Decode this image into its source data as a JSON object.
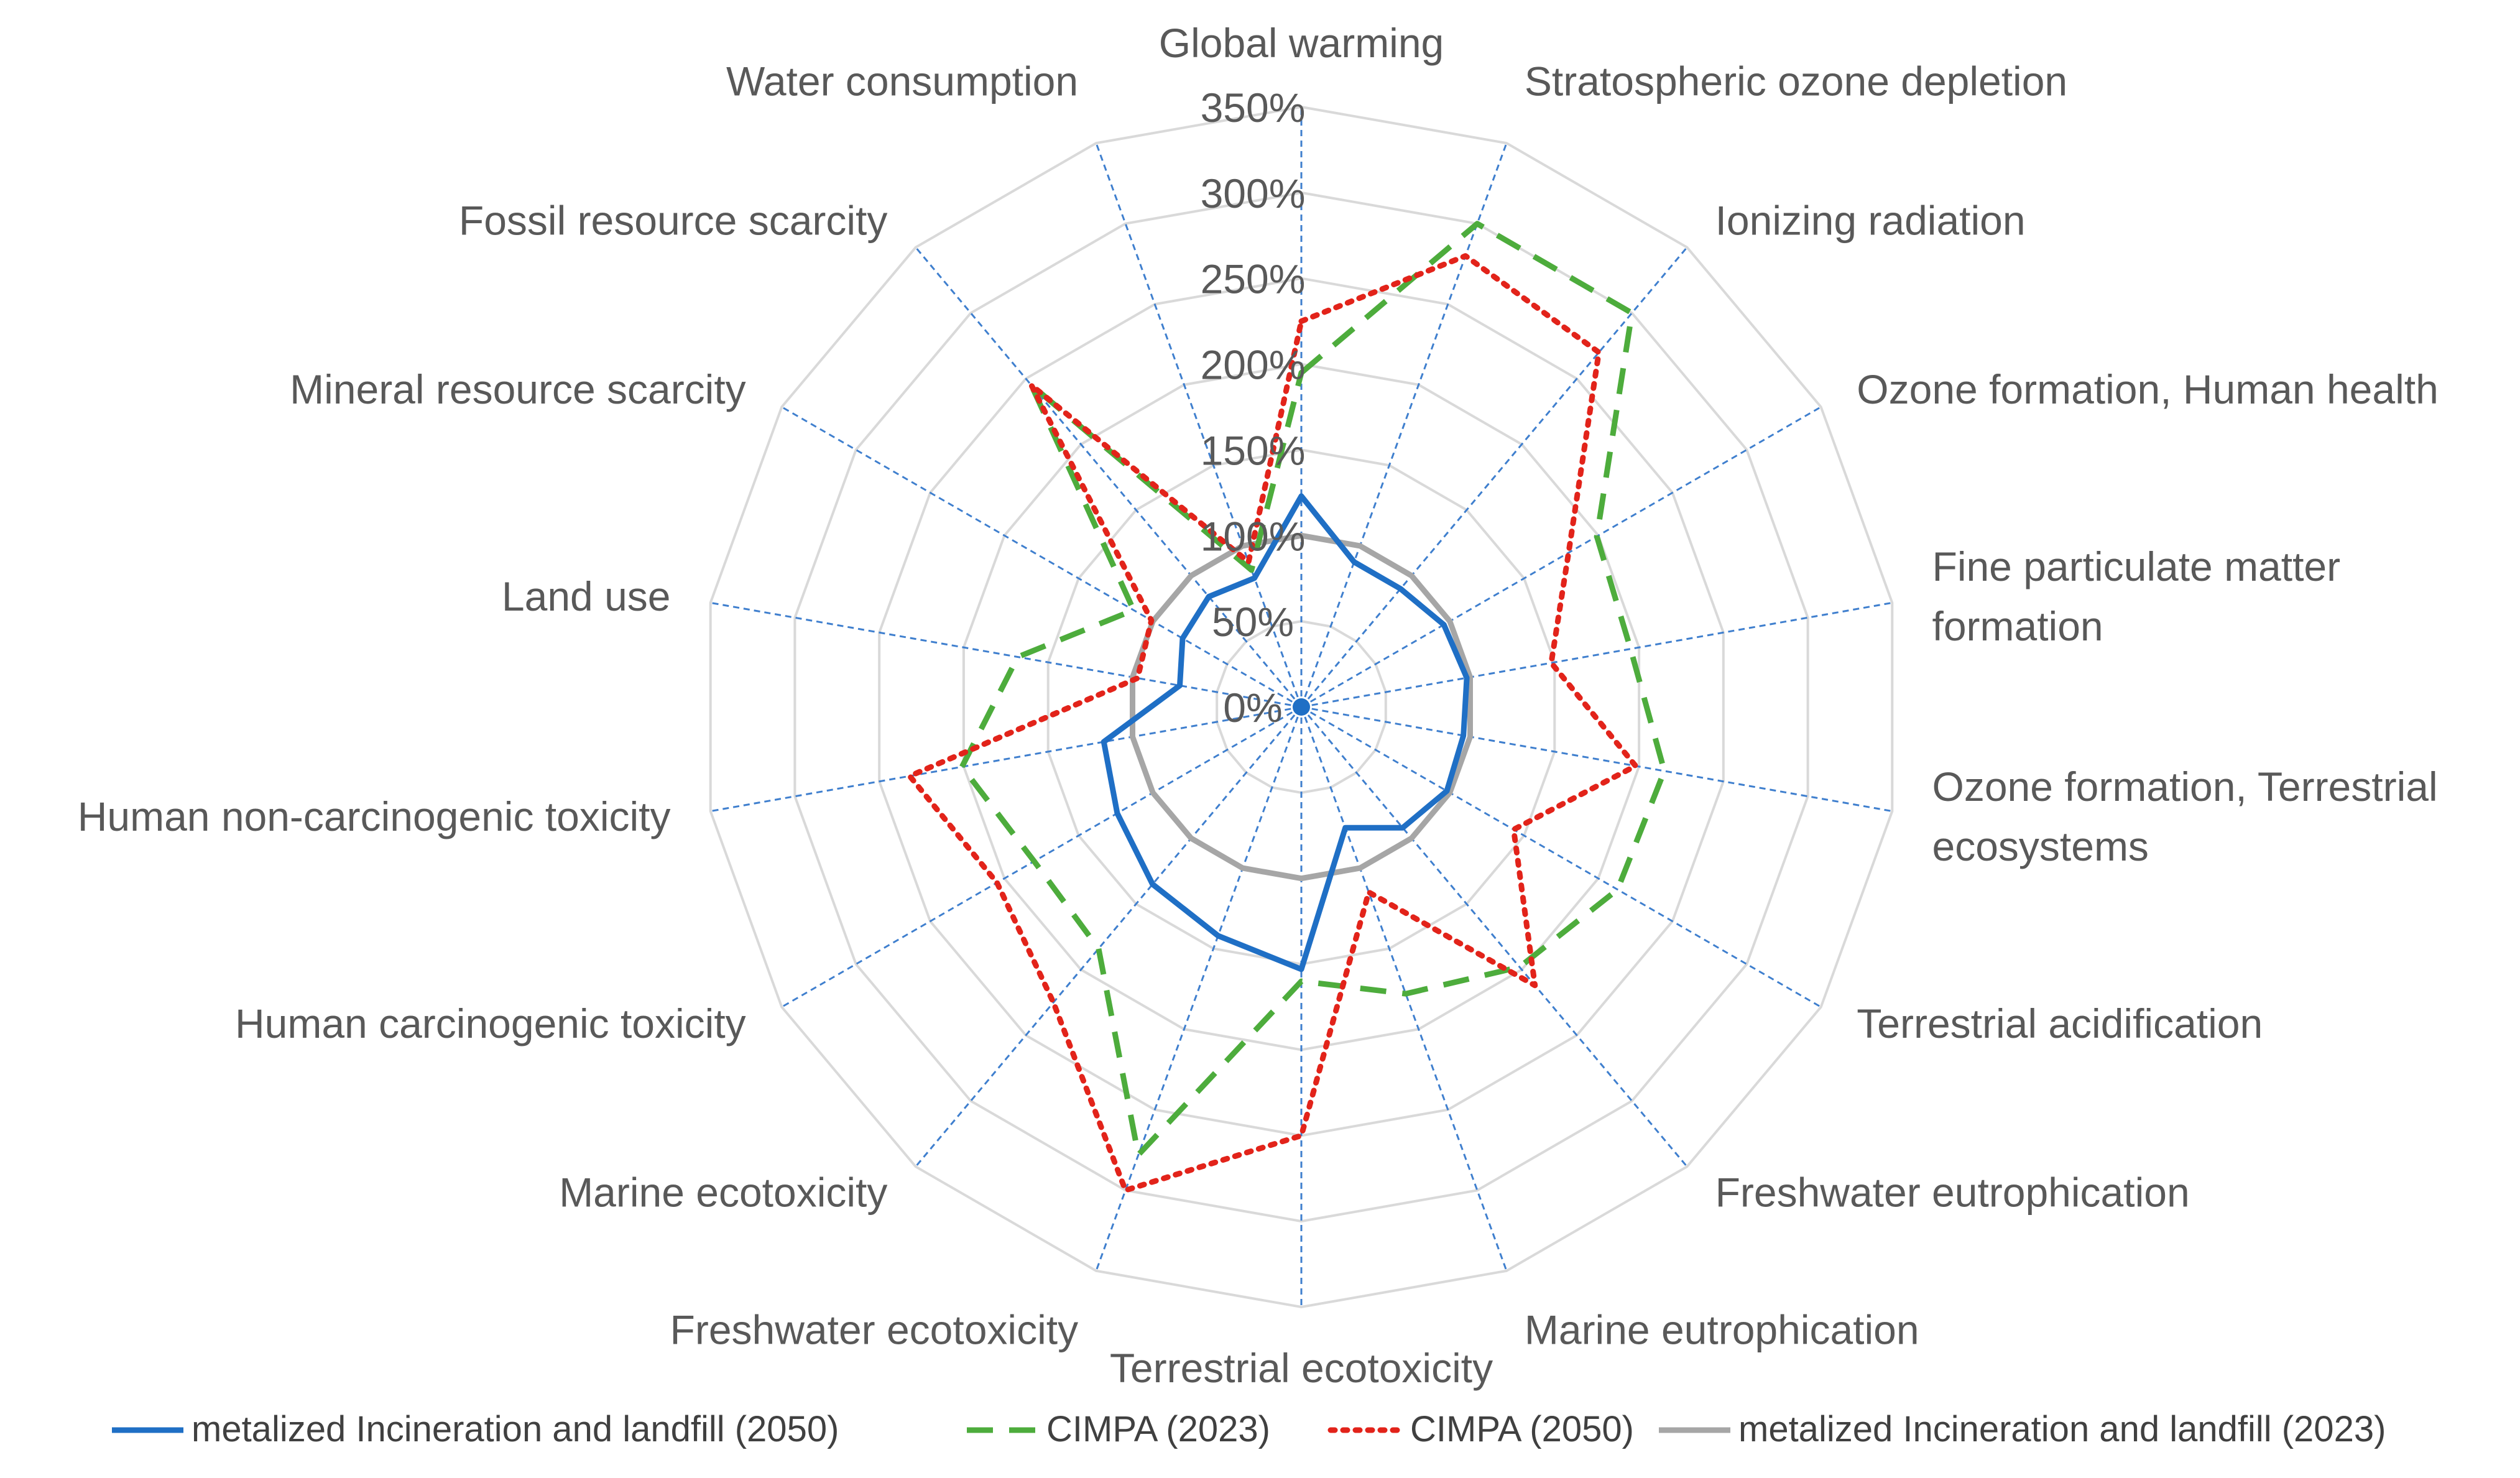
{
  "chart_data": {
    "type": "radar",
    "categories": [
      "Global warming",
      "Stratospheric ozone depletion",
      "Ionizing radiation",
      "Ozone formation, Human health",
      "Fine particulate matter formation",
      "Ozone formation, Terrestrial ecosystems",
      "Terrestrial acidification",
      "Freshwater eutrophication",
      "Marine eutrophication",
      "Terrestrial ecotoxicity",
      "Freshwater ecotoxicity",
      "Marine ecotoxicity",
      "Human carcinogenic toxicity",
      "Human non-carcinogenic toxicity",
      "Land use",
      "Mineral resource scarcity",
      "Fossil resource scarcity",
      "Water consumption"
    ],
    "category_label_lines": [
      [
        "Global warming"
      ],
      [
        "Stratospheric ozone depletion"
      ],
      [
        "Ionizing radiation"
      ],
      [
        "Ozone formation, Human health"
      ],
      [
        "Fine particulate matter",
        "formation"
      ],
      [
        "Ozone formation, Terrestrial",
        "ecosystems"
      ],
      [
        "Terrestrial acidification"
      ],
      [
        "Freshwater eutrophication"
      ],
      [
        "Marine eutrophication"
      ],
      [
        "Terrestrial ecotoxicity"
      ],
      [
        "Freshwater ecotoxicity"
      ],
      [
        "Marine ecotoxicity"
      ],
      [
        "Human carcinogenic toxicity"
      ],
      [
        "Human non-carcinogenic toxicity"
      ],
      [
        "Land use"
      ],
      [
        "Mineral resource scarcity"
      ],
      [
        "Fossil resource scarcity"
      ],
      [
        "Water consumption"
      ]
    ],
    "rmax": 350,
    "ticks": [
      0,
      50,
      100,
      150,
      200,
      250,
      300,
      350
    ],
    "tick_labels": [
      "0%",
      "50%",
      "100%",
      "150%",
      "200%",
      "250%",
      "300%",
      "350%"
    ],
    "grid": true,
    "legend_position": "bottom",
    "series": [
      {
        "name": "metalized Incineration and landfill (2050)",
        "color": "#1f6fc5",
        "dash": "solid",
        "values": [
          123,
          90,
          90,
          96,
          98,
          96,
          98,
          92,
          75,
          153,
          142,
          135,
          124,
          117,
          72,
          80,
          84,
          80
        ]
      },
      {
        "name": "CIMPA (2023)",
        "color": "#4dac3c",
        "dash": "dashed",
        "values": [
          195,
          300,
          300,
          199,
          195,
          215,
          213,
          198,
          178,
          160,
          278,
          184,
          180,
          201,
          168,
          113,
          245,
          85
        ]
      },
      {
        "name": "CIMPA (2050)",
        "color": "#e2231a",
        "dash": "dotted",
        "values": [
          225,
          280,
          270,
          180,
          148,
          198,
          143,
          212,
          115,
          250,
          300,
          225,
          205,
          232,
          97,
          101,
          245,
          90
        ]
      },
      {
        "name": "metalized Incineration and landfill (2023)",
        "color": "#a6a6a6",
        "dash": "solid",
        "values": [
          100,
          100,
          100,
          100,
          100,
          100,
          100,
          100,
          100,
          100,
          100,
          100,
          100,
          100,
          100,
          100,
          100,
          100
        ]
      }
    ]
  }
}
